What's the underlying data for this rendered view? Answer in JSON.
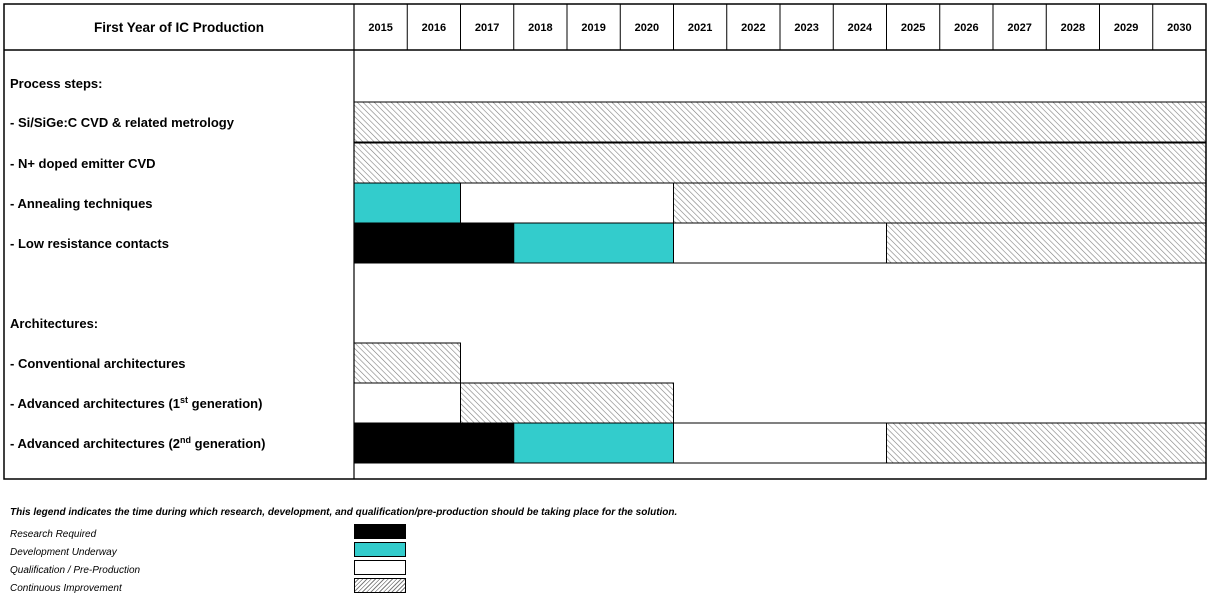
{
  "chart_data": {
    "type": "table",
    "header_label": "First Year of IC Production",
    "years": [
      "2015",
      "2016",
      "2017",
      "2018",
      "2019",
      "2020",
      "2021",
      "2022",
      "2023",
      "2024",
      "2025",
      "2026",
      "2027",
      "2028",
      "2029",
      "2030"
    ],
    "rows": [
      {
        "kind": "section",
        "label": "Process steps:",
        "segments": []
      },
      {
        "kind": "item",
        "label": "- Si/SiGe:C CVD & related metrology",
        "segments": [
          {
            "status": "continuous",
            "start": 2015,
            "end": 2030
          }
        ]
      },
      {
        "kind": "item",
        "label": "- N+ doped emitter CVD",
        "segments": [
          {
            "status": "continuous",
            "start": 2015,
            "end": 2030
          }
        ]
      },
      {
        "kind": "item",
        "label": "- Annealing techniques",
        "segments": [
          {
            "status": "development",
            "start": 2015,
            "end": 2016
          },
          {
            "status": "qualification",
            "start": 2017,
            "end": 2020
          },
          {
            "status": "continuous",
            "start": 2021,
            "end": 2030
          }
        ]
      },
      {
        "kind": "item",
        "label": "- Low resistance contacts",
        "segments": [
          {
            "status": "research",
            "start": 2015,
            "end": 2017
          },
          {
            "status": "development",
            "start": 2018,
            "end": 2020
          },
          {
            "status": "qualification",
            "start": 2021,
            "end": 2024
          },
          {
            "status": "continuous",
            "start": 2025,
            "end": 2030
          }
        ]
      },
      {
        "kind": "spacer",
        "label": "",
        "segments": []
      },
      {
        "kind": "section",
        "label": "Architectures:",
        "segments": []
      },
      {
        "kind": "item",
        "label": "- Conventional architectures",
        "segments": [
          {
            "status": "continuous",
            "start": 2015,
            "end": 2016
          }
        ]
      },
      {
        "kind": "item",
        "label": "- Advanced architectures (1",
        "sup": "st",
        "label_after": " generation)",
        "segments": [
          {
            "status": "qualification",
            "start": 2015,
            "end": 2016
          },
          {
            "status": "continuous",
            "start": 2017,
            "end": 2020
          }
        ]
      },
      {
        "kind": "item",
        "label": "- Advanced architectures (2",
        "sup": "nd",
        "label_after": " generation)",
        "segments": [
          {
            "status": "research",
            "start": 2015,
            "end": 2017
          },
          {
            "status": "development",
            "start": 2018,
            "end": 2020
          },
          {
            "status": "qualification",
            "start": 2021,
            "end": 2024
          },
          {
            "status": "continuous",
            "start": 2025,
            "end": 2030
          }
        ]
      }
    ],
    "legend": {
      "note": "This legend indicates the time during which research, development, and qualification/pre-production should be taking place for the solution.",
      "items": [
        {
          "status": "research",
          "label": "Research Required"
        },
        {
          "status": "development",
          "label": "Development Underway"
        },
        {
          "status": "qualification",
          "label": "Qualification / Pre-Production"
        },
        {
          "status": "continuous",
          "label": "Continuous Improvement"
        }
      ]
    },
    "colors": {
      "research": "#000000",
      "development": "#33cccc",
      "qualification": "#ffffff",
      "continuous_hatch": "#7f7f7f",
      "continuous_bg": "#ffffff"
    }
  }
}
